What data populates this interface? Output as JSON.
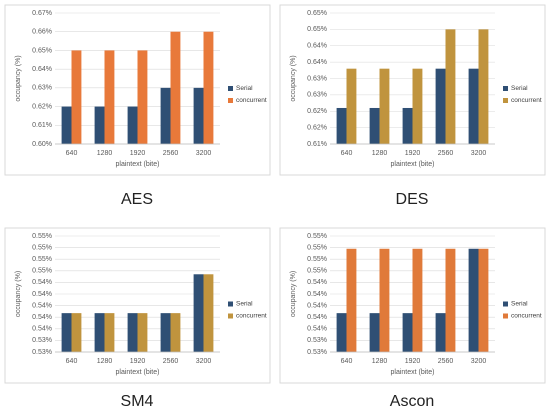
{
  "chart_data": [
    {
      "type": "bar",
      "title": "AES",
      "xlabel": "plaintext (bite)",
      "ylabel": "occupancy (%)",
      "categories": [
        "640",
        "1280",
        "1920",
        "2560",
        "3200"
      ],
      "series": [
        {
          "name": "Serial",
          "color": "#2f4f74",
          "values": [
            0.62,
            0.62,
            0.62,
            0.63,
            0.63
          ]
        },
        {
          "name": "concurrent",
          "color": "#e8793a",
          "values": [
            0.65,
            0.65,
            0.65,
            0.66,
            0.66
          ]
        }
      ],
      "ylim": [
        0.6,
        0.67
      ],
      "yticks": [
        {
          "value": 0.6,
          "label": "0.60%"
        },
        {
          "value": 0.61,
          "label": "0.61%"
        },
        {
          "value": 0.62,
          "label": "0.62%"
        },
        {
          "value": 0.63,
          "label": "0.63%"
        },
        {
          "value": 0.64,
          "label": "0.64%"
        },
        {
          "value": 0.65,
          "label": "0.65%"
        },
        {
          "value": 0.66,
          "label": "0.66%"
        },
        {
          "value": 0.67,
          "label": "0.67%"
        }
      ],
      "grid": true
    },
    {
      "type": "bar",
      "title": "DES",
      "xlabel": "plaintext (bite)",
      "ylabel": "occupancy (%)",
      "categories": [
        "640",
        "1280",
        "1920",
        "2560",
        "3200"
      ],
      "series": [
        {
          "name": "Serial",
          "color": "#2f4f74",
          "values": [
            0.621,
            0.621,
            0.621,
            0.633,
            0.633
          ]
        },
        {
          "name": "concurrent",
          "color": "#c0943e",
          "values": [
            0.633,
            0.633,
            0.633,
            0.645,
            0.645
          ]
        }
      ],
      "ylim": [
        0.61,
        0.65
      ],
      "yticks": [
        {
          "value": 0.61,
          "label": "0.61%"
        },
        {
          "value": 0.615,
          "label": "0.62%"
        },
        {
          "value": 0.62,
          "label": "0.62%"
        },
        {
          "value": 0.625,
          "label": "0.63%"
        },
        {
          "value": 0.63,
          "label": "0.63%"
        },
        {
          "value": 0.635,
          "label": "0.64%"
        },
        {
          "value": 0.64,
          "label": "0.64%"
        },
        {
          "value": 0.645,
          "label": "0.65%"
        },
        {
          "value": 0.65,
          "label": "0.65%"
        }
      ],
      "grid": true
    },
    {
      "type": "bar",
      "title": "SM4",
      "xlabel": "plaintext (bite)",
      "ylabel": "occupancy (%)",
      "categories": [
        "640",
        "1280",
        "1920",
        "2560",
        "3200"
      ],
      "series": [
        {
          "name": "Serial",
          "color": "#2f4f74",
          "values": [
            0.5387,
            0.5387,
            0.5387,
            0.5387,
            0.5454
          ]
        },
        {
          "name": "concurrent",
          "color": "#c0943e",
          "values": [
            0.5387,
            0.5387,
            0.5387,
            0.5387,
            0.5454
          ]
        }
      ],
      "ylim": [
        0.532,
        0.552
      ],
      "yticks": [
        {
          "value": 0.532,
          "label": "0.53%"
        },
        {
          "value": 0.534,
          "label": "0.53%"
        },
        {
          "value": 0.536,
          "label": "0.54%"
        },
        {
          "value": 0.538,
          "label": "0.54%"
        },
        {
          "value": 0.54,
          "label": "0.54%"
        },
        {
          "value": 0.542,
          "label": "0.54%"
        },
        {
          "value": 0.544,
          "label": "0.54%"
        },
        {
          "value": 0.546,
          "label": "0.55%"
        },
        {
          "value": 0.548,
          "label": "0.55%"
        },
        {
          "value": 0.55,
          "label": "0.55%"
        },
        {
          "value": 0.552,
          "label": "0.55%"
        }
      ],
      "grid": true
    },
    {
      "type": "bar",
      "title": "Ascon",
      "xlabel": "plaintext (bite)",
      "ylabel": "occupancy (%)",
      "categories": [
        "640",
        "1280",
        "1920",
        "2560",
        "3200"
      ],
      "series": [
        {
          "name": "Serial",
          "color": "#2f4f74",
          "values": [
            0.5387,
            0.5387,
            0.5387,
            0.5387,
            0.5498
          ]
        },
        {
          "name": "concurrent",
          "color": "#e07a3a",
          "values": [
            0.5498,
            0.5498,
            0.5498,
            0.5498,
            0.5498
          ]
        }
      ],
      "ylim": [
        0.532,
        0.552
      ],
      "yticks": [
        {
          "value": 0.532,
          "label": "0.53%"
        },
        {
          "value": 0.534,
          "label": "0.53%"
        },
        {
          "value": 0.536,
          "label": "0.54%"
        },
        {
          "value": 0.538,
          "label": "0.54%"
        },
        {
          "value": 0.54,
          "label": "0.54%"
        },
        {
          "value": 0.542,
          "label": "0.54%"
        },
        {
          "value": 0.544,
          "label": "0.54%"
        },
        {
          "value": 0.546,
          "label": "0.55%"
        },
        {
          "value": 0.548,
          "label": "0.55%"
        },
        {
          "value": 0.55,
          "label": "0.55%"
        },
        {
          "value": 0.552,
          "label": "0.55%"
        }
      ],
      "grid": true
    }
  ]
}
